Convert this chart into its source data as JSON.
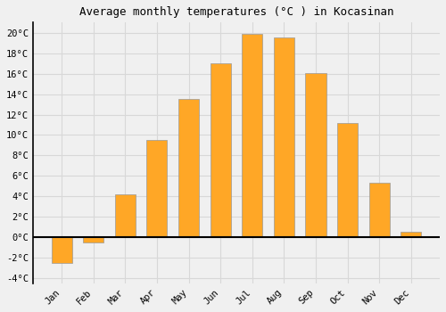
{
  "title": "Average monthly temperatures (°C ) in Kocasinan",
  "months": [
    "Jan",
    "Feb",
    "Mar",
    "Apr",
    "May",
    "Jun",
    "Jul",
    "Aug",
    "Sep",
    "Oct",
    "Nov",
    "Dec"
  ],
  "values": [
    -2.5,
    -0.5,
    4.2,
    9.5,
    13.5,
    17.0,
    19.9,
    19.5,
    16.1,
    11.2,
    5.3,
    0.5
  ],
  "bar_color": "#FFA726",
  "bar_edge_color": "#999999",
  "ylim": [
    -4.5,
    21
  ],
  "yticks": [
    -4,
    -2,
    0,
    2,
    4,
    6,
    8,
    10,
    12,
    14,
    16,
    18,
    20
  ],
  "ytick_labels": [
    "-4°C",
    "-2°C",
    "0°C",
    "2°C",
    "4°C",
    "6°C",
    "8°C",
    "10°C",
    "12°C",
    "14°C",
    "16°C",
    "18°C",
    "20°C"
  ],
  "background_color": "#f0f0f0",
  "grid_color": "#d8d8d8",
  "title_fontsize": 9,
  "tick_fontsize": 7.5,
  "bar_width": 0.65,
  "fig_width": 5.0,
  "fig_height": 3.5,
  "dpi": 100
}
